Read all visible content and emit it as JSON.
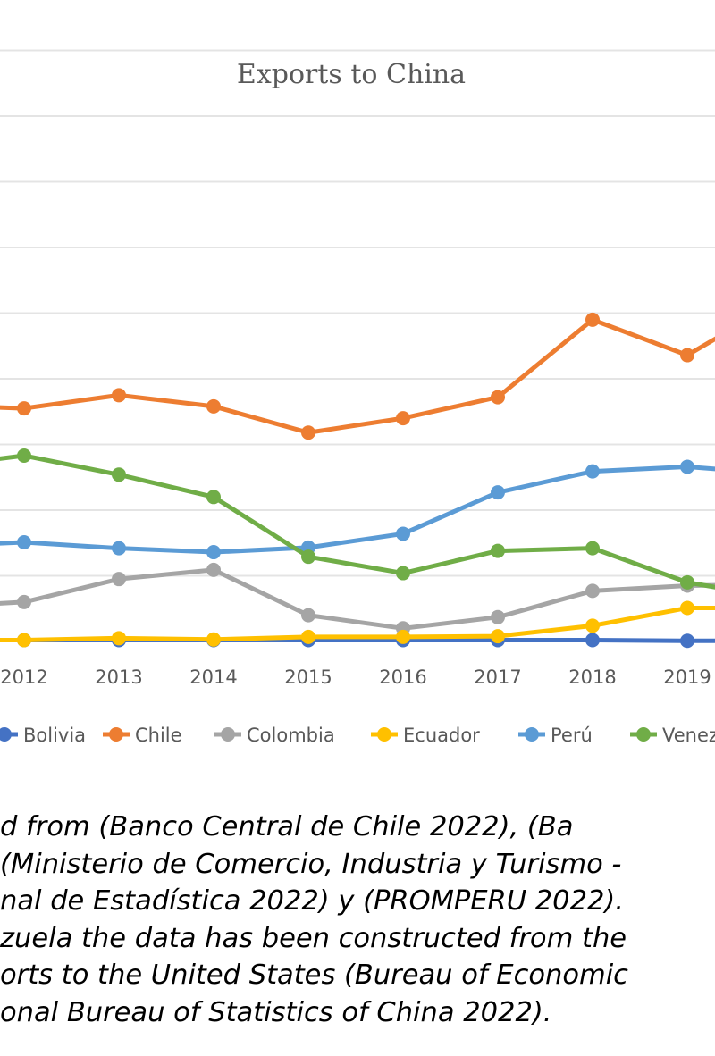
{
  "chart_data": {
    "type": "line",
    "title": "Exports to China",
    "xlabel": "",
    "ylabel": "",
    "categories": [
      "2012",
      "2013",
      "2014",
      "2015",
      "2016",
      "2017",
      "2018",
      "2019"
    ],
    "ylim": [
      0,
      9
    ],
    "grid": true,
    "legend_position": "bottom",
    "series": [
      {
        "name": "Bolivia",
        "color": "#4472c4",
        "values": [
          0.02,
          0.02,
          0.02,
          0.02,
          0.02,
          0.02,
          0.02,
          0.01
        ]
      },
      {
        "name": "Chile",
        "color": "#ed7d31",
        "values": [
          3.55,
          3.75,
          3.58,
          3.18,
          3.4,
          3.72,
          4.9,
          4.36
        ]
      },
      {
        "name": "Colombia",
        "color": "#a5a5a5",
        "values": [
          0.6,
          0.95,
          1.09,
          0.4,
          0.2,
          0.37,
          0.77,
          0.85
        ]
      },
      {
        "name": "Ecuador",
        "color": "#ffc000",
        "values": [
          0.02,
          0.05,
          0.03,
          0.07,
          0.07,
          0.08,
          0.24,
          0.51
        ]
      },
      {
        "name": "Perú",
        "color": "#5b9bd5",
        "values": [
          1.51,
          1.42,
          1.36,
          1.43,
          1.64,
          2.27,
          2.59,
          2.66
        ]
      },
      {
        "name": "Venezuela",
        "color": "#70ad47",
        "values": [
          2.83,
          2.54,
          2.2,
          1.29,
          1.04,
          1.38,
          1.42,
          0.9
        ]
      }
    ],
    "legend_labels": [
      "Bolivia",
      "Chile",
      "Colombia",
      "Ecuador",
      "Perú",
      "Venez"
    ],
    "edge_values": {
      "before_first": {
        "Chile": 3.6,
        "Colombia": 0.52,
        "Ecuador": 0.02,
        "Perú": 1.45,
        "Venezuela": 2.65,
        "Bolivia": 0.02
      },
      "after_last": {
        "Chile": 5.2,
        "Colombia": 0.87,
        "Ecuador": 0.51,
        "Perú": 2.55,
        "Venezuela": 0.65,
        "Bolivia": 0.01
      }
    }
  },
  "note": {
    "lines": [
      "d from (Banco Central de Chile 2022), (Ba",
      "(Ministerio de Comercio, Industria y Turismo -",
      "nal de Estadística 2022) y (PROMPERU 2022).",
      "zuela the data has been constructed from the",
      "orts to the United States (Bureau of Economic",
      "onal Bureau of Statistics of China 2022)."
    ]
  }
}
